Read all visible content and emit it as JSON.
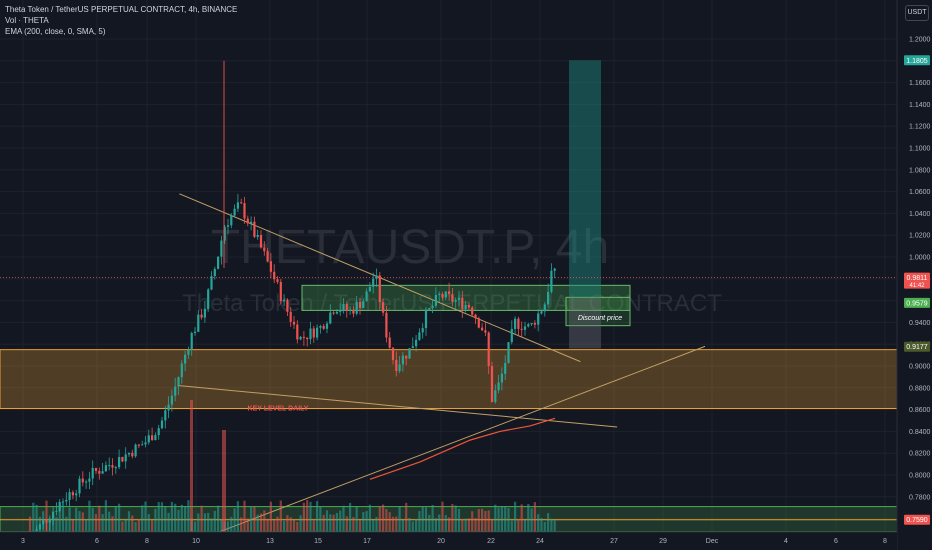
{
  "legend": {
    "line1": "Theta Token / TetherUS PERPETUAL CONTRACT, 4h, BINANCE",
    "line2": "Vol · THETA",
    "line3": "EMA (200, close, 0, SMA, 5)"
  },
  "currency": "USDT",
  "watermark": {
    "symbol": "THETAUSDT.P, 4h",
    "name": "Theta Token / TetherUS PERPETUAL CONTRACT"
  },
  "colors": {
    "background": "#131722",
    "up": "#26a69a",
    "down": "#ef5350",
    "ema": "#f0553a",
    "trendline": "#c2a064",
    "zone_orange": "#f0a030",
    "zone_green": "#4caf50",
    "teal_box": "#1e8c7e"
  },
  "chart_data": {
    "type": "candlestick",
    "ylim": [
      0.746,
      1.209
    ],
    "y_ticks": [
      "1.2000",
      "1.1800",
      "1.1600",
      "1.1400",
      "1.1200",
      "1.1000",
      "1.0800",
      "1.0600",
      "1.0400",
      "1.0200",
      "1.0000",
      "0.9800",
      "0.9600",
      "0.9400",
      "0.9200",
      "0.9000",
      "0.8800",
      "0.8600",
      "0.8400",
      "0.8200",
      "0.8000",
      "0.7800",
      "0.7600"
    ],
    "x_ticks": [
      "3",
      "6",
      "8",
      "10",
      "13",
      "15",
      "17",
      "20",
      "22",
      "24",
      "27",
      "29",
      "Dec",
      "4",
      "6",
      "8"
    ],
    "price_tags": [
      {
        "label": "1.1805",
        "value": 1.1805,
        "color": "#26a69a"
      },
      {
        "label": "0.9811",
        "sub": "41:42",
        "value": 0.9811,
        "color": "#ef5350"
      },
      {
        "label": "0.9579",
        "value": 0.9579,
        "color": "#4caf50"
      },
      {
        "label": "0.9177",
        "value": 0.9177,
        "color": "#4a5a2a"
      },
      {
        "label": "0.7590",
        "value": 0.759,
        "color": "#ef5350"
      }
    ],
    "annotations": [
      {
        "text": "KEY LEVEL DAILY",
        "color": "#ef5350"
      },
      {
        "text": "Discount price",
        "color": "#ffffff"
      }
    ],
    "zones": [
      {
        "name": "key level daily",
        "y_from": 0.861,
        "y_to": 0.915
      },
      {
        "name": "resistance",
        "y_from": 0.951,
        "y_to": 0.974
      },
      {
        "name": "discount",
        "y_from": 0.937,
        "y_to": 0.963
      },
      {
        "name": "low",
        "y_from": 0.748,
        "y_to": 0.771
      }
    ],
    "long_position": {
      "entry": 0.963,
      "target": 1.1805,
      "stop": 0.916
    },
    "lines": [
      {
        "name": "descending-resistance",
        "from": [
          0.2,
          1.058
        ],
        "to": [
          0.647,
          0.904
        ]
      },
      {
        "name": "ascending-support",
        "from": [
          0.245,
          0.748
        ],
        "to": [
          0.786,
          0.918
        ]
      },
      {
        "name": "lower-trendline",
        "from": [
          0.2,
          0.882
        ],
        "to": [
          0.688,
          0.844
        ]
      },
      {
        "name": "current-price",
        "from": [
          0,
          0.9811
        ],
        "to": [
          1,
          0.9811
        ]
      },
      {
        "name": "level-0.7590",
        "from": [
          0,
          0.759
        ],
        "to": [
          1,
          0.759
        ]
      }
    ]
  }
}
